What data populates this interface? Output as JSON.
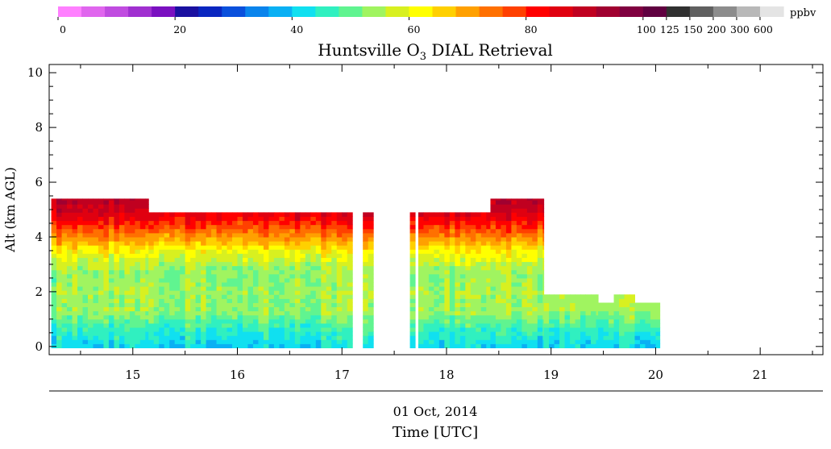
{
  "chart_data": {
    "type": "heatmap",
    "title_prefix": "Huntsville O",
    "title_subscript": "3",
    "title_suffix": " DIAL Retrieval",
    "xlabel": "Time [UTC]",
    "date_label": "01 Oct, 2014",
    "ylabel": "Alt (km AGL)",
    "xlim": [
      14.2,
      21.6
    ],
    "ylim": [
      -0.3,
      10.3
    ],
    "xticks": [
      15,
      16,
      17,
      18,
      19,
      20,
      21
    ],
    "yticks": [
      0,
      2,
      4,
      6,
      8,
      10
    ],
    "colorbar": {
      "units": "ppbv",
      "colors": [
        "#ff80ff",
        "#e066ee",
        "#c04ce0",
        "#a030d0",
        "#7a10c0",
        "#1a10a0",
        "#0a26c0",
        "#0a50dc",
        "#0a84ec",
        "#0ab0f4",
        "#10e0f0",
        "#30f0c0",
        "#60f490",
        "#a0f460",
        "#d8f020",
        "#ffff00",
        "#ffd000",
        "#ffa000",
        "#ff7000",
        "#ff4000",
        "#ff0000",
        "#e00010",
        "#c00020",
        "#a00030",
        "#800040",
        "#600040",
        "#303030",
        "#606060",
        "#8c8c8c",
        "#b8b8b8",
        "#e4e4e4"
      ],
      "tick_labels": [
        "0",
        "20",
        "40",
        "60",
        "80",
        "100",
        "125",
        "150",
        "200",
        "300",
        "600"
      ]
    },
    "segments": [
      {
        "x": [
          14.22,
          15.15
        ],
        "top_km": 5.4
      },
      {
        "x": [
          15.15,
          17.1
        ],
        "top_km": 4.9
      },
      {
        "x": [
          17.2,
          17.3
        ],
        "top_km": 4.9
      },
      {
        "x": [
          17.65,
          17.7
        ],
        "top_km": 4.9
      },
      {
        "x": [
          17.73,
          18.42
        ],
        "top_km": 4.9
      },
      {
        "x": [
          18.42,
          18.93
        ],
        "top_km": 5.4
      },
      {
        "x": [
          18.93,
          19.45
        ],
        "top_km": 1.9
      },
      {
        "x": [
          19.45,
          19.6
        ],
        "top_km": 1.6
      },
      {
        "x": [
          19.6,
          19.8
        ],
        "top_km": 1.9
      },
      {
        "x": [
          19.8,
          20.04
        ],
        "top_km": 1.6
      }
    ],
    "ozone_profile": [
      {
        "alt_km": 0.0,
        "ppbv": 41
      },
      {
        "alt_km": 0.2,
        "ppbv": 43
      },
      {
        "alt_km": 0.5,
        "ppbv": 45
      },
      {
        "alt_km": 0.8,
        "ppbv": 48
      },
      {
        "alt_km": 1.0,
        "ppbv": 50
      },
      {
        "alt_km": 1.3,
        "ppbv": 54
      },
      {
        "alt_km": 1.6,
        "ppbv": 53
      },
      {
        "alt_km": 2.0,
        "ppbv": 55
      },
      {
        "alt_km": 2.4,
        "ppbv": 53
      },
      {
        "alt_km": 2.8,
        "ppbv": 54
      },
      {
        "alt_km": 3.2,
        "ppbv": 58
      },
      {
        "alt_km": 3.5,
        "ppbv": 62
      },
      {
        "alt_km": 3.8,
        "ppbv": 68
      },
      {
        "alt_km": 4.1,
        "ppbv": 73
      },
      {
        "alt_km": 4.4,
        "ppbv": 79
      },
      {
        "alt_km": 4.7,
        "ppbv": 84
      },
      {
        "alt_km": 5.0,
        "ppbv": 88
      },
      {
        "alt_km": 5.4,
        "ppbv": 91
      }
    ]
  }
}
